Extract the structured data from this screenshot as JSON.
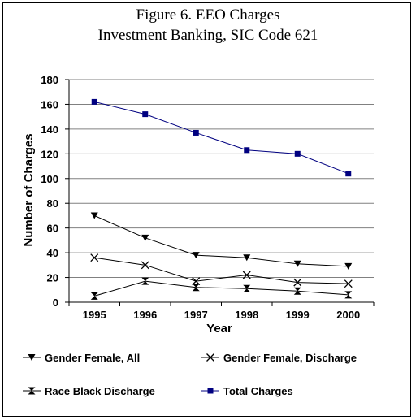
{
  "chart_data": {
    "type": "line",
    "title": "Figure 6.  EEO Charges",
    "subtitle": "Investment Banking, SIC Code 621",
    "xlabel": "Year",
    "ylabel": "Number of Charges",
    "categories": [
      "1995",
      "1996",
      "1997",
      "1998",
      "1999",
      "2000"
    ],
    "ylim": [
      0,
      180
    ],
    "yticks": [
      "0",
      "20",
      "40",
      "60",
      "80",
      "100",
      "120",
      "140",
      "160",
      "180"
    ],
    "grid": true,
    "legend_position": "bottom",
    "series": [
      {
        "name": "Gender Female, All",
        "marker": "triangle-down",
        "color": "#000000",
        "values": [
          70,
          52,
          38,
          36,
          31,
          29
        ]
      },
      {
        "name": "Gender Female, Discharge",
        "marker": "x",
        "color": "#000000",
        "values": [
          36,
          30,
          17,
          22,
          16,
          15
        ]
      },
      {
        "name": "Race Black Discharge",
        "marker": "hourglass",
        "color": "#000000",
        "values": [
          5,
          17,
          12,
          11,
          9,
          6
        ]
      },
      {
        "name": "Total Charges",
        "marker": "square",
        "color": "#000080",
        "values": [
          162,
          152,
          137,
          123,
          120,
          104
        ]
      }
    ]
  }
}
